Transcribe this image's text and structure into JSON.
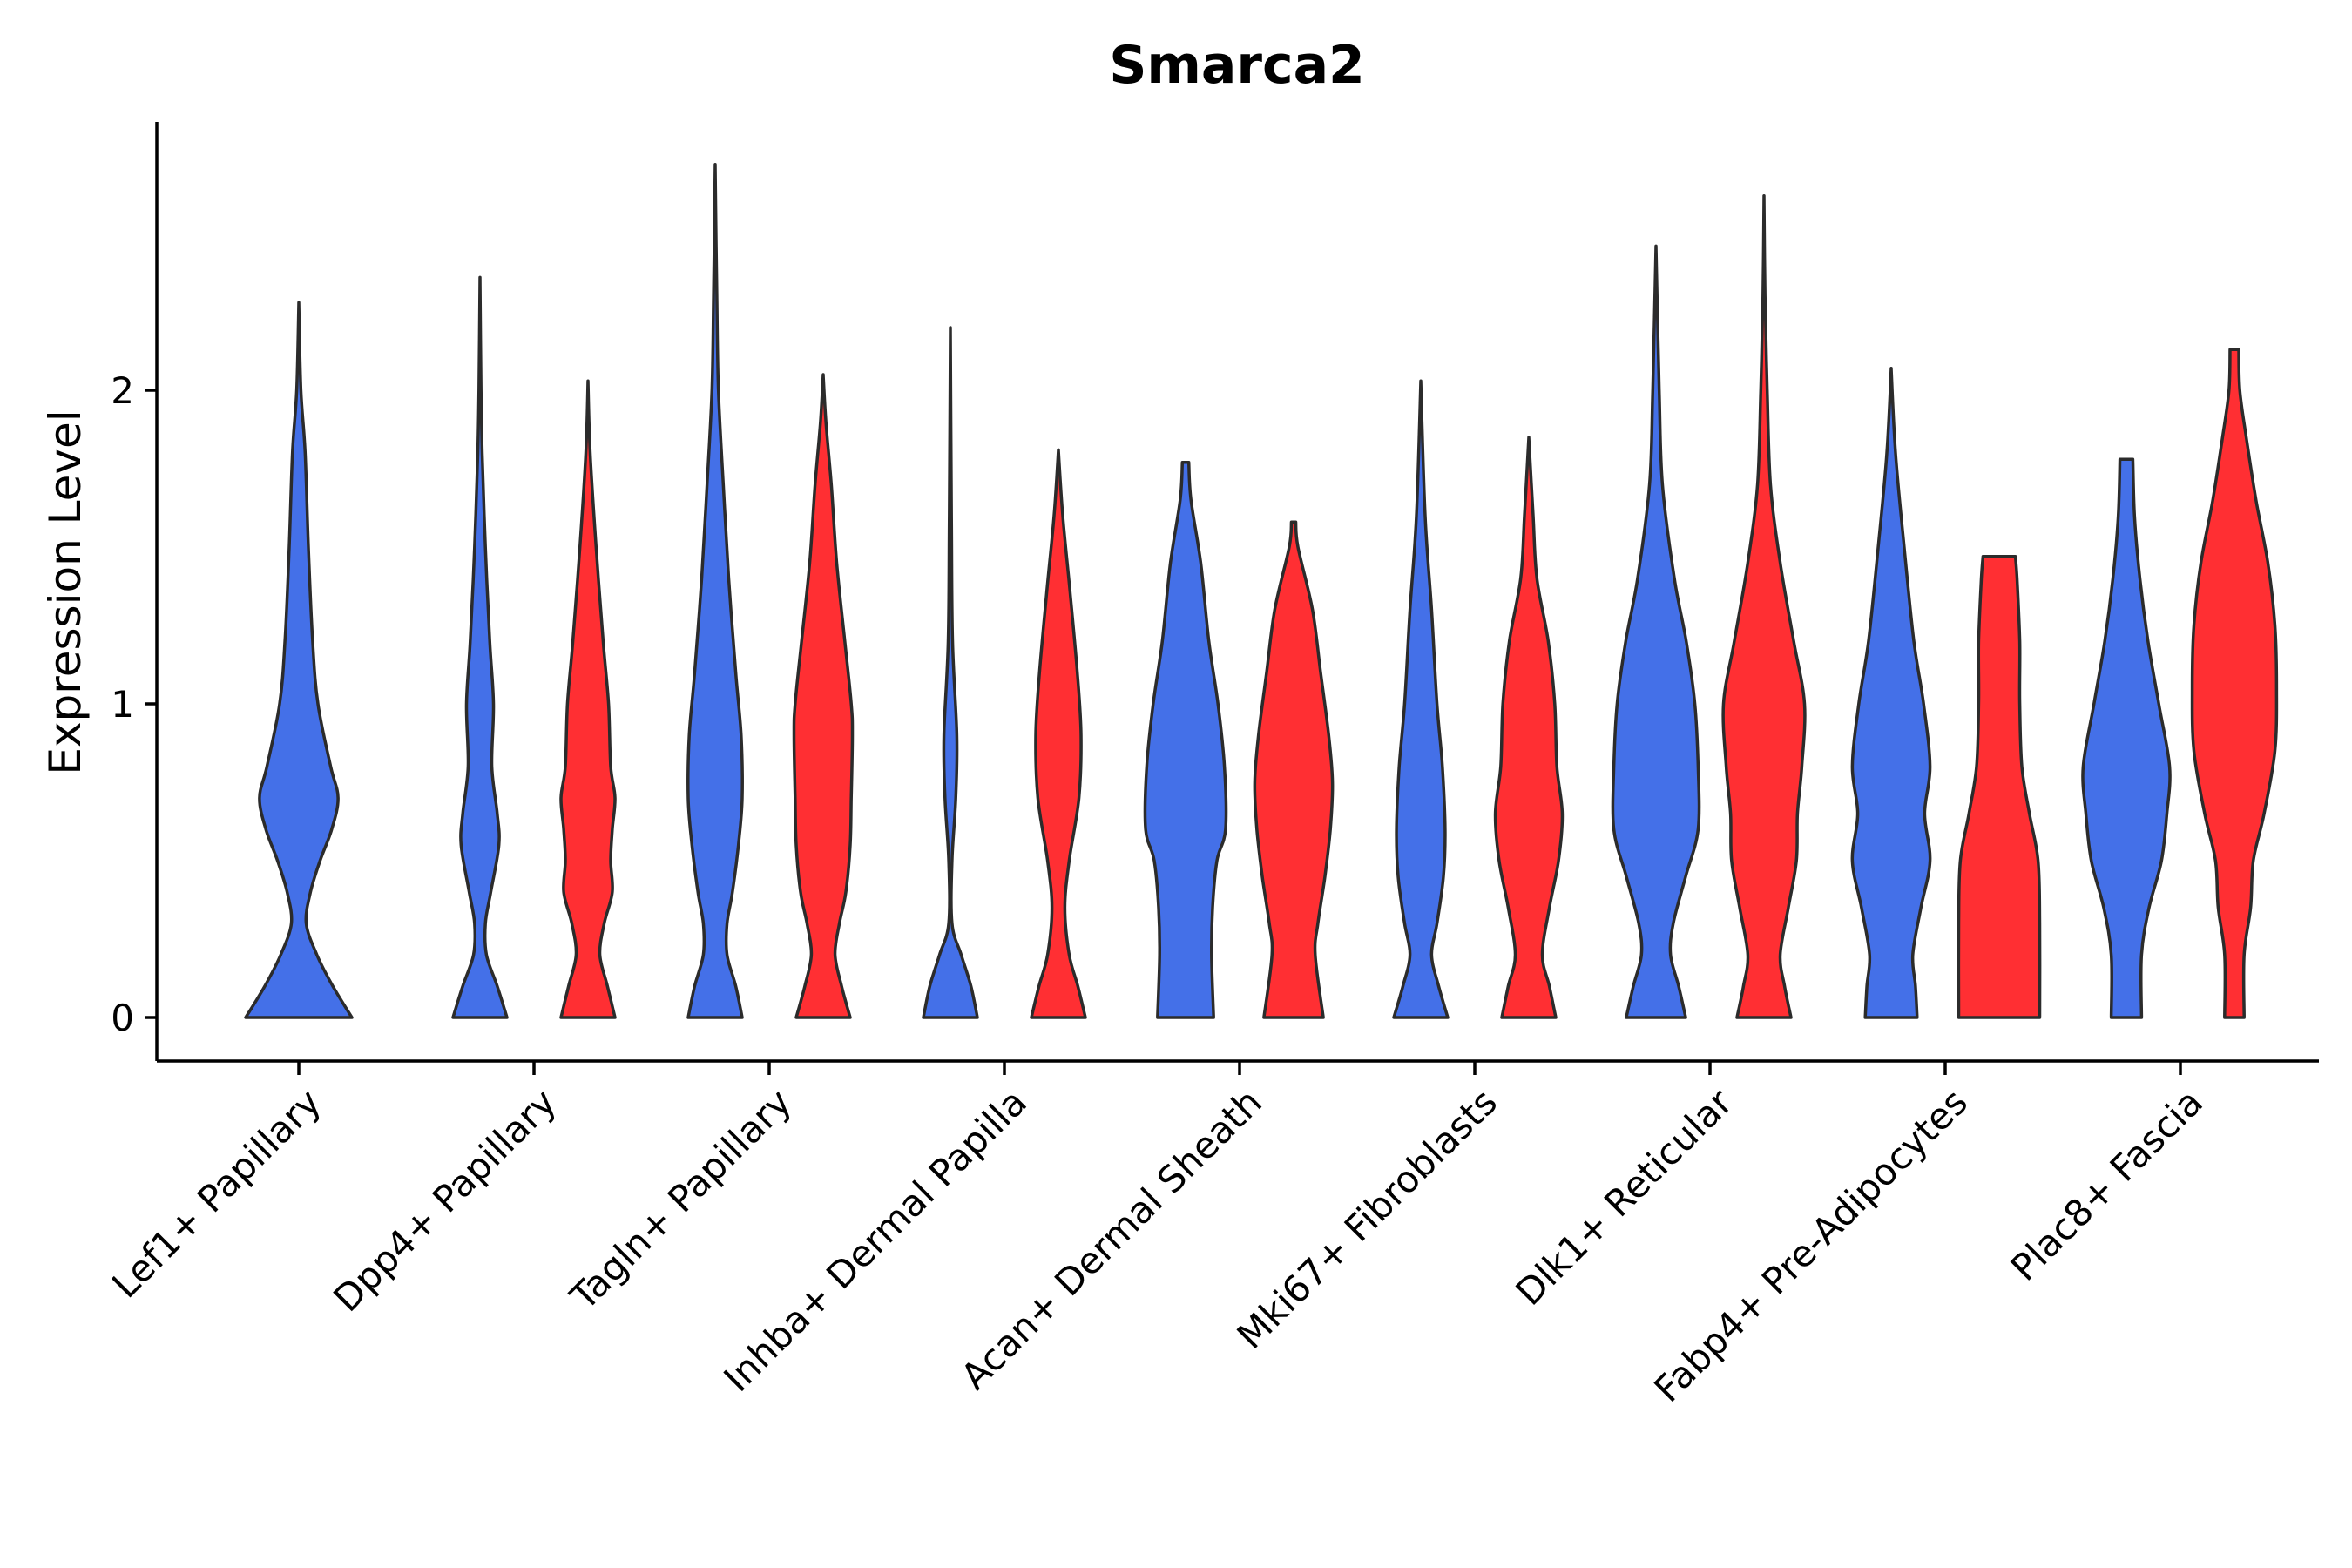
{
  "chart_data": {
    "type": "violin",
    "title": "Smarca2",
    "xlabel": "",
    "ylabel": "Expression Level",
    "ylim": [
      -0.14,
      2.85
    ],
    "yticks": [
      0,
      1,
      2
    ],
    "legend": "none",
    "grid": false,
    "split_colors": {
      "left": "#4470E8",
      "right": "#FF2F33"
    },
    "categories": [
      "Lef1+ Papillary",
      "Dpp4+ Papillary",
      "Tagln+ Papillary",
      "Inhba+ Dermal Papilla",
      "Acan+ Dermal Sheath",
      "Mki67+ Fibroblasts",
      "Dlk1+ Reticular",
      "Fabp4+ Pre-Adipocytes",
      "Plac8+ Fascia"
    ],
    "violins": [
      {
        "category": "Lef1+ Papillary",
        "group": "blue",
        "color": "#4470E8",
        "min": 0,
        "max": 2.28,
        "profile": [
          [
            0,
            0.5
          ],
          [
            0.1,
            0.32
          ],
          [
            0.2,
            0.17
          ],
          [
            0.3,
            0.07
          ],
          [
            0.4,
            0.11
          ],
          [
            0.5,
            0.2
          ],
          [
            0.6,
            0.31
          ],
          [
            0.7,
            0.37
          ],
          [
            0.8,
            0.3
          ],
          [
            1.0,
            0.18
          ],
          [
            1.2,
            0.13
          ],
          [
            1.5,
            0.09
          ],
          [
            1.8,
            0.06
          ],
          [
            2.0,
            0.02
          ],
          [
            2.28,
            0
          ]
        ]
      },
      {
        "category": "Dpp4+ Papillary",
        "group": "blue",
        "color": "#4470E8",
        "min": 0,
        "max": 2.36,
        "profile": [
          [
            0,
            0.5
          ],
          [
            0.1,
            0.32
          ],
          [
            0.2,
            0.12
          ],
          [
            0.3,
            0.1
          ],
          [
            0.4,
            0.2
          ],
          [
            0.55,
            0.35
          ],
          [
            0.65,
            0.32
          ],
          [
            0.8,
            0.22
          ],
          [
            1.0,
            0.25
          ],
          [
            1.2,
            0.18
          ],
          [
            1.5,
            0.1
          ],
          [
            1.8,
            0.04
          ],
          [
            2.0,
            0.02
          ],
          [
            2.36,
            0
          ]
        ]
      },
      {
        "category": "Dpp4+ Papillary",
        "group": "red",
        "color": "#FF2F33",
        "min": 0,
        "max": 2.03,
        "profile": [
          [
            0,
            0.5
          ],
          [
            0.1,
            0.36
          ],
          [
            0.2,
            0.22
          ],
          [
            0.3,
            0.3
          ],
          [
            0.4,
            0.45
          ],
          [
            0.5,
            0.42
          ],
          [
            0.6,
            0.45
          ],
          [
            0.7,
            0.5
          ],
          [
            0.8,
            0.42
          ],
          [
            1.0,
            0.38
          ],
          [
            1.2,
            0.28
          ],
          [
            1.5,
            0.15
          ],
          [
            1.8,
            0.04
          ],
          [
            2.03,
            0
          ]
        ]
      },
      {
        "category": "Tagln+ Papillary",
        "group": "blue",
        "color": "#4470E8",
        "min": 0,
        "max": 2.72,
        "profile": [
          [
            0,
            0.5
          ],
          [
            0.1,
            0.38
          ],
          [
            0.2,
            0.22
          ],
          [
            0.3,
            0.22
          ],
          [
            0.4,
            0.32
          ],
          [
            0.55,
            0.43
          ],
          [
            0.7,
            0.5
          ],
          [
            0.9,
            0.48
          ],
          [
            1.1,
            0.38
          ],
          [
            1.4,
            0.25
          ],
          [
            1.7,
            0.15
          ],
          [
            2.0,
            0.06
          ],
          [
            2.3,
            0.03
          ],
          [
            2.72,
            0
          ]
        ]
      },
      {
        "category": "Tagln+ Papillary",
        "group": "red",
        "color": "#FF2F33",
        "min": 0,
        "max": 2.05,
        "profile": [
          [
            0,
            0.5
          ],
          [
            0.1,
            0.34
          ],
          [
            0.2,
            0.22
          ],
          [
            0.3,
            0.3
          ],
          [
            0.4,
            0.42
          ],
          [
            0.55,
            0.5
          ],
          [
            0.7,
            0.52
          ],
          [
            0.9,
            0.54
          ],
          [
            1.0,
            0.52
          ],
          [
            1.2,
            0.4
          ],
          [
            1.45,
            0.25
          ],
          [
            1.7,
            0.15
          ],
          [
            1.9,
            0.05
          ],
          [
            2.05,
            0
          ]
        ]
      },
      {
        "category": "Inhba+ Dermal Papilla",
        "group": "blue",
        "color": "#4470E8",
        "min": 0,
        "max": 2.2,
        "profile": [
          [
            0,
            0.5
          ],
          [
            0.1,
            0.38
          ],
          [
            0.2,
            0.2
          ],
          [
            0.3,
            0.03
          ],
          [
            0.5,
            0.03
          ],
          [
            0.7,
            0.1
          ],
          [
            0.9,
            0.12
          ],
          [
            1.2,
            0.04
          ],
          [
            1.6,
            0.02
          ],
          [
            2.2,
            0
          ]
        ]
      },
      {
        "category": "Inhba+ Dermal Papilla",
        "group": "red",
        "color": "#FF2F33",
        "min": 0,
        "max": 1.81,
        "profile": [
          [
            0,
            0.5
          ],
          [
            0.1,
            0.36
          ],
          [
            0.2,
            0.2
          ],
          [
            0.35,
            0.12
          ],
          [
            0.5,
            0.2
          ],
          [
            0.7,
            0.38
          ],
          [
            0.9,
            0.42
          ],
          [
            1.1,
            0.35
          ],
          [
            1.35,
            0.22
          ],
          [
            1.6,
            0.08
          ],
          [
            1.81,
            0
          ]
        ]
      },
      {
        "category": "Acan+ Dermal Sheath",
        "group": "blue",
        "color": "#4470E8",
        "min": 0,
        "max": 1.77,
        "profile": [
          [
            0,
            0.52
          ],
          [
            0.2,
            0.48
          ],
          [
            0.35,
            0.5
          ],
          [
            0.5,
            0.58
          ],
          [
            0.6,
            0.74
          ],
          [
            0.8,
            0.72
          ],
          [
            1.0,
            0.6
          ],
          [
            1.2,
            0.43
          ],
          [
            1.45,
            0.28
          ],
          [
            1.65,
            0.1
          ],
          [
            1.77,
            0.06
          ]
        ]
      },
      {
        "category": "Acan+ Dermal Sheath",
        "group": "red",
        "color": "#FF2F33",
        "min": 0,
        "max": 1.58,
        "profile": [
          [
            0,
            0.55
          ],
          [
            0.2,
            0.4
          ],
          [
            0.3,
            0.45
          ],
          [
            0.45,
            0.58
          ],
          [
            0.6,
            0.68
          ],
          [
            0.75,
            0.72
          ],
          [
            0.9,
            0.65
          ],
          [
            1.1,
            0.5
          ],
          [
            1.3,
            0.35
          ],
          [
            1.5,
            0.08
          ],
          [
            1.58,
            0.04
          ]
        ]
      },
      {
        "category": "Mki67+ Fibroblasts",
        "group": "blue",
        "color": "#4470E8",
        "min": 0,
        "max": 2.03,
        "profile": [
          [
            0,
            0.5
          ],
          [
            0.1,
            0.33
          ],
          [
            0.2,
            0.2
          ],
          [
            0.3,
            0.3
          ],
          [
            0.45,
            0.42
          ],
          [
            0.6,
            0.45
          ],
          [
            0.8,
            0.4
          ],
          [
            1.0,
            0.3
          ],
          [
            1.3,
            0.2
          ],
          [
            1.6,
            0.08
          ],
          [
            2.03,
            0
          ]
        ]
      },
      {
        "category": "Mki67+ Fibroblasts",
        "group": "red",
        "color": "#FF2F33",
        "min": 0,
        "max": 1.85,
        "profile": [
          [
            0,
            0.5
          ],
          [
            0.1,
            0.38
          ],
          [
            0.2,
            0.25
          ],
          [
            0.35,
            0.38
          ],
          [
            0.5,
            0.55
          ],
          [
            0.65,
            0.62
          ],
          [
            0.8,
            0.52
          ],
          [
            1.0,
            0.48
          ],
          [
            1.2,
            0.36
          ],
          [
            1.4,
            0.15
          ],
          [
            1.6,
            0.08
          ],
          [
            1.85,
            0
          ]
        ]
      },
      {
        "category": "Dlk1+ Reticular",
        "group": "blue",
        "color": "#4470E8",
        "min": 0,
        "max": 2.46,
        "profile": [
          [
            0,
            0.55
          ],
          [
            0.1,
            0.42
          ],
          [
            0.2,
            0.27
          ],
          [
            0.3,
            0.32
          ],
          [
            0.45,
            0.55
          ],
          [
            0.6,
            0.78
          ],
          [
            0.8,
            0.78
          ],
          [
            1.0,
            0.72
          ],
          [
            1.2,
            0.56
          ],
          [
            1.4,
            0.34
          ],
          [
            1.7,
            0.12
          ],
          [
            2.0,
            0.06
          ],
          [
            2.46,
            0
          ]
        ]
      },
      {
        "category": "Dlk1+ Reticular",
        "group": "red",
        "color": "#FF2F33",
        "min": 0,
        "max": 2.62,
        "profile": [
          [
            0,
            0.5
          ],
          [
            0.1,
            0.38
          ],
          [
            0.2,
            0.3
          ],
          [
            0.35,
            0.45
          ],
          [
            0.5,
            0.6
          ],
          [
            0.65,
            0.62
          ],
          [
            0.8,
            0.7
          ],
          [
            1.0,
            0.75
          ],
          [
            1.2,
            0.55
          ],
          [
            1.45,
            0.3
          ],
          [
            1.7,
            0.12
          ],
          [
            2.0,
            0.06
          ],
          [
            2.3,
            0.02
          ],
          [
            2.62,
            0
          ]
        ]
      },
      {
        "category": "Fabp4+ Pre-Adipocytes",
        "group": "blue",
        "color": "#4470E8",
        "min": 0,
        "max": 2.07,
        "profile": [
          [
            0,
            0.48
          ],
          [
            0.1,
            0.45
          ],
          [
            0.2,
            0.4
          ],
          [
            0.35,
            0.55
          ],
          [
            0.5,
            0.72
          ],
          [
            0.65,
            0.62
          ],
          [
            0.8,
            0.72
          ],
          [
            1.0,
            0.6
          ],
          [
            1.2,
            0.42
          ],
          [
            1.5,
            0.24
          ],
          [
            1.8,
            0.08
          ],
          [
            2.07,
            0
          ]
        ]
      },
      {
        "category": "Fabp4+ Pre-Adipocytes",
        "group": "red",
        "color": "#FF2F33",
        "min": 0,
        "max": 1.47,
        "profile": [
          [
            0,
            0.75
          ],
          [
            0.3,
            0.75
          ],
          [
            0.5,
            0.72
          ],
          [
            0.65,
            0.56
          ],
          [
            0.8,
            0.42
          ],
          [
            1.0,
            0.38
          ],
          [
            1.2,
            0.38
          ],
          [
            1.4,
            0.33
          ],
          [
            1.47,
            0.3
          ]
        ]
      },
      {
        "category": "Plac8+ Fascia",
        "group": "blue",
        "color": "#4470E8",
        "min": 0,
        "max": 1.78,
        "profile": [
          [
            0,
            0.28
          ],
          [
            0.2,
            0.28
          ],
          [
            0.35,
            0.42
          ],
          [
            0.5,
            0.65
          ],
          [
            0.65,
            0.75
          ],
          [
            0.8,
            0.8
          ],
          [
            1.0,
            0.6
          ],
          [
            1.2,
            0.4
          ],
          [
            1.4,
            0.25
          ],
          [
            1.6,
            0.15
          ],
          [
            1.78,
            0.12
          ]
        ]
      },
      {
        "category": "Plac8+ Fascia",
        "group": "red",
        "color": "#FF2F33",
        "min": 0,
        "max": 2.13,
        "profile": [
          [
            0,
            0.18
          ],
          [
            0.2,
            0.18
          ],
          [
            0.35,
            0.3
          ],
          [
            0.5,
            0.35
          ],
          [
            0.65,
            0.55
          ],
          [
            0.85,
            0.75
          ],
          [
            1.05,
            0.78
          ],
          [
            1.25,
            0.75
          ],
          [
            1.45,
            0.62
          ],
          [
            1.65,
            0.4
          ],
          [
            1.85,
            0.22
          ],
          [
            2.0,
            0.1
          ],
          [
            2.13,
            0.08
          ]
        ]
      }
    ]
  }
}
